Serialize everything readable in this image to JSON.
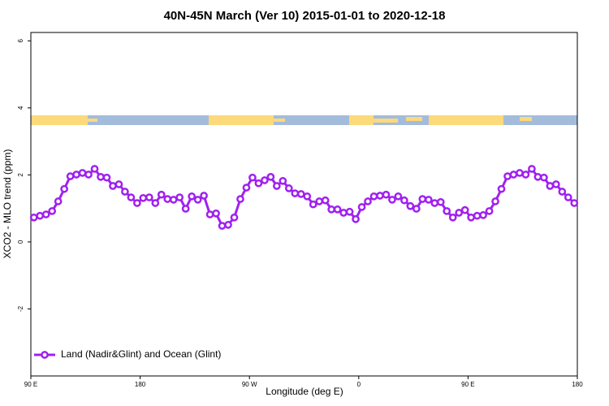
{
  "chart_data": {
    "type": "line",
    "title": "40N-45N March (Ver 10)   2015-01-01 to 2020-12-18",
    "x_label": "Longitude (deg E)",
    "y_label": "XCO2 - MLO trend (ppm)",
    "xlim": [
      90,
      540
    ],
    "xticks": [
      {
        "value": 90,
        "label": "90 E"
      },
      {
        "value": 180,
        "label": "180"
      },
      {
        "value": 270,
        "label": "90 W"
      },
      {
        "value": 360,
        "label": "0"
      },
      {
        "value": 450,
        "label": "90 E"
      },
      {
        "value": 540,
        "label": "180"
      }
    ],
    "ylim": [
      -4,
      6.25
    ],
    "yticks": [
      -2,
      0,
      2,
      4,
      6
    ],
    "legend": "bottomleft",
    "x": [
      92.5,
      97.5,
      102.5,
      107.5,
      112.5,
      117.5,
      122.5,
      127.5,
      132.5,
      137.5,
      142.5,
      147.5,
      152.5,
      157.5,
      162.5,
      167.5,
      172.5,
      177.5,
      182.5,
      187.5,
      192.5,
      197.5,
      202.5,
      207.5,
      212.5,
      217.5,
      222.5,
      227.5,
      232.5,
      237.5,
      242.5,
      247.5,
      252.5,
      257.5,
      262.5,
      267.5,
      272.5,
      277.5,
      282.5,
      287.5,
      292.5,
      297.5,
      302.5,
      307.5,
      312.5,
      317.5,
      322.5,
      327.5,
      332.5,
      337.5,
      342.5,
      347.5,
      352.5,
      357.5,
      362.5,
      367.5,
      372.5,
      377.5,
      382.5,
      387.5,
      392.5,
      397.5,
      402.5,
      407.5,
      412.5,
      417.5,
      422.5,
      427.5,
      432.5,
      437.5,
      442.5,
      447.5,
      452.5,
      457.5,
      462.5,
      467.5,
      472.5,
      477.5,
      482.5,
      487.5,
      492.5,
      497.5,
      502.5,
      507.5,
      512.5,
      517.5,
      522.5,
      527.5,
      532.5,
      537.5
    ],
    "series": [
      {
        "name": "Land (Nadir&Glint) and Ocean (Glint)",
        "color": "#a020f0",
        "values": [
          0.73,
          0.78,
          0.82,
          0.92,
          1.21,
          1.58,
          1.96,
          2.01,
          2.06,
          2.01,
          2.18,
          1.94,
          1.92,
          1.67,
          1.72,
          1.5,
          1.33,
          1.16,
          1.31,
          1.33,
          1.16,
          1.41,
          1.28,
          1.26,
          1.33,
          0.99,
          1.36,
          1.26,
          1.38,
          0.82,
          0.85,
          0.48,
          0.51,
          0.73,
          1.28,
          1.62,
          1.92,
          1.75,
          1.84,
          1.94,
          1.67,
          1.82,
          1.6,
          1.45,
          1.43,
          1.36,
          1.12,
          1.21,
          1.24,
          0.97,
          0.97,
          0.87,
          0.9,
          0.68,
          1.04,
          1.21,
          1.36,
          1.38,
          1.41,
          1.26,
          1.36,
          1.24,
          1.07,
          0.99,
          1.28,
          1.26,
          1.16,
          1.19,
          0.92,
          0.73,
          0.87,
          0.95,
          0.73,
          0.78,
          0.8,
          0.92,
          1.21,
          1.58,
          1.96,
          2.01,
          2.06,
          2.01,
          2.18,
          1.94,
          1.92,
          1.67,
          1.72,
          1.5,
          1.33,
          1.16
        ]
      }
    ]
  }
}
